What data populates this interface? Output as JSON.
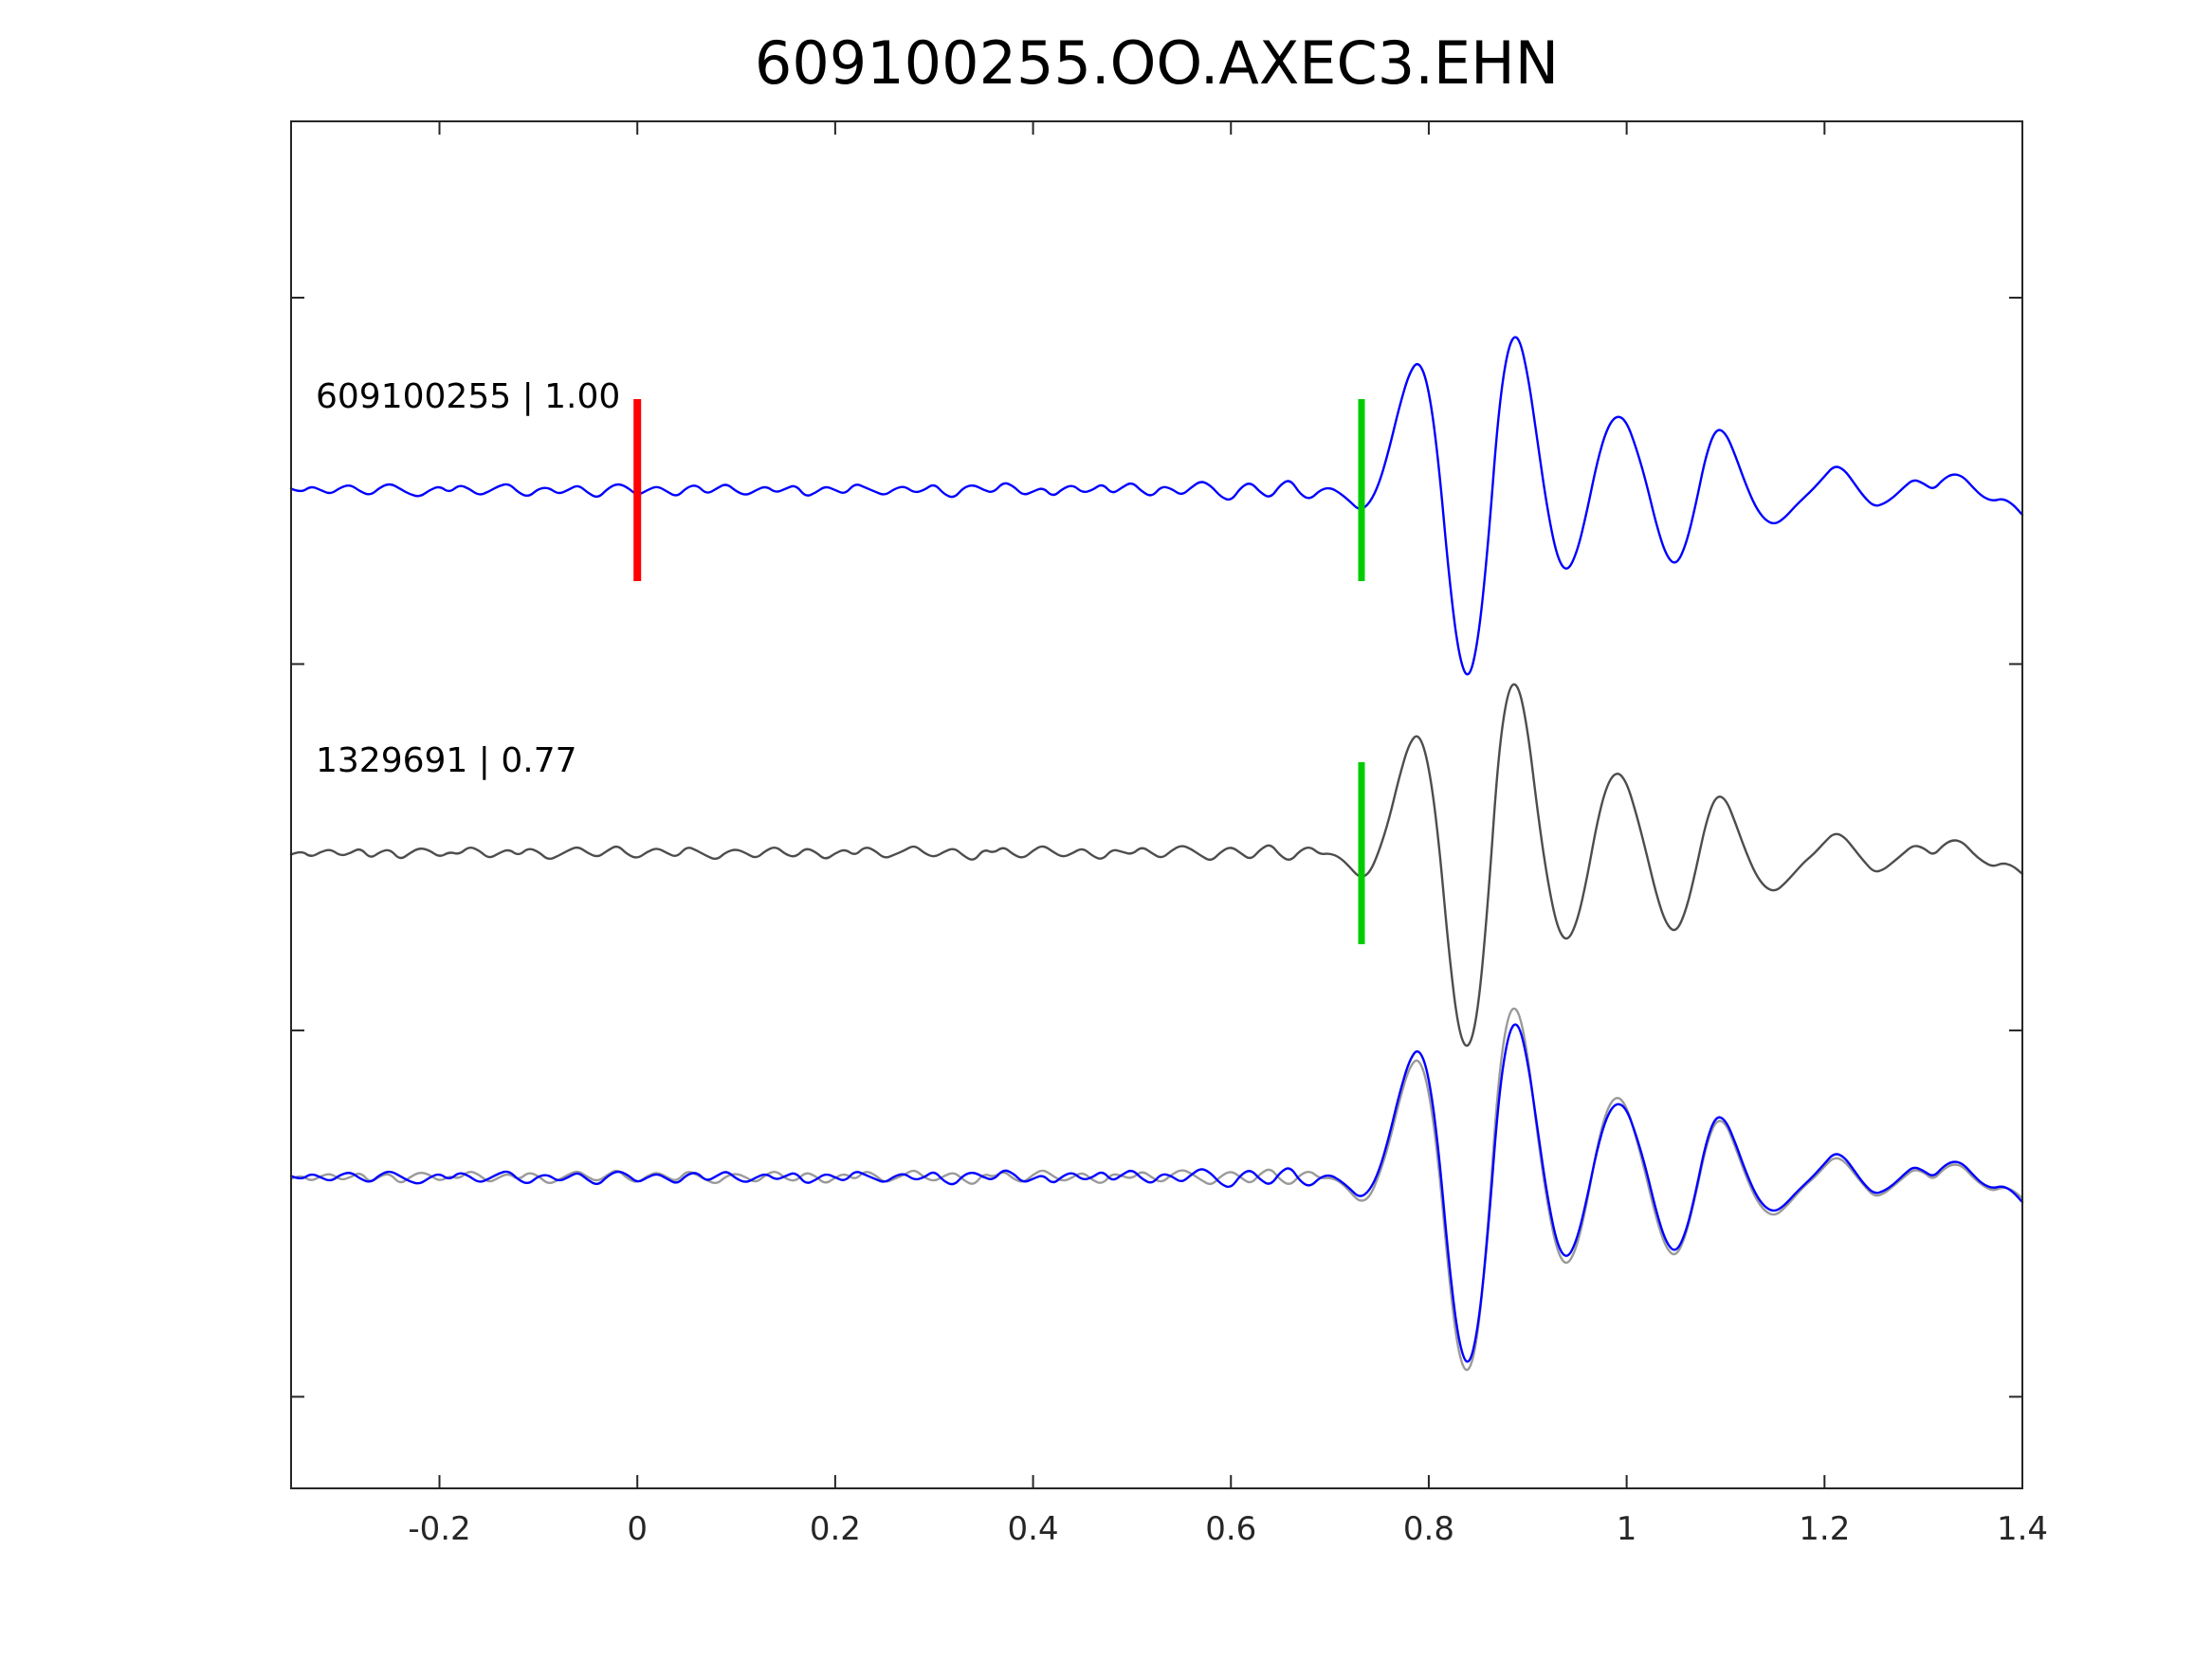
{
  "chart_data": {
    "type": "line",
    "title": "609100255.OO.AXEC3.EHN",
    "xlabel": "",
    "ylabel": "",
    "grid": false,
    "legend": "none",
    "xlim": [
      -0.35,
      1.4
    ],
    "x_ticks": [
      {
        "v": -0.2,
        "label": "-0.2"
      },
      {
        "v": 0,
        "label": "0"
      },
      {
        "v": 0.2,
        "label": "0.2"
      },
      {
        "v": 0.4,
        "label": "0.4"
      },
      {
        "v": 0.6,
        "label": "0.6"
      },
      {
        "v": 0.8,
        "label": "0.8"
      },
      {
        "v": 1,
        "label": "1"
      },
      {
        "v": 1.2,
        "label": "1.2"
      },
      {
        "v": 1.4,
        "label": "1.4"
      }
    ],
    "x0": -0.35,
    "dx": 0.01,
    "colors": {
      "template_blue": "#0000ff",
      "detection_gray": "#4d4d4d",
      "overlay_gray": "#9a9a9a",
      "pick_green": "#00cc00",
      "origin_red": "#ff0000",
      "axis": "#262626"
    },
    "rows": [
      {
        "label": "609100255 | 1.00",
        "series": [
          {
            "ref": "template",
            "color": "#0000ff"
          }
        ],
        "markers": [
          {
            "x": 0,
            "color": "#ff0000",
            "name": "origin-marker"
          },
          {
            "x": 0.732,
            "color": "#00cc00",
            "name": "pick-marker"
          }
        ]
      },
      {
        "label": "1329691 | 0.77",
        "series": [
          {
            "ref": "detection",
            "color": "#4d4d4d"
          }
        ],
        "markers": [
          {
            "x": 0.732,
            "color": "#00cc00",
            "name": "pick-marker"
          }
        ]
      },
      {
        "label": "",
        "series": [
          {
            "ref": "detection",
            "color": "#9a9a9a"
          },
          {
            "ref": "template",
            "color": "#0000ff"
          }
        ],
        "markers": []
      }
    ],
    "series": {
      "template": {
        "name": "609100255",
        "color": "#0000ff",
        "y": [
          0.01,
          -0.02,
          0.03,
          0.0,
          -0.03,
          0.02,
          0.04,
          -0.01,
          -0.04,
          0.02,
          0.05,
          0.01,
          -0.03,
          -0.05,
          0.0,
          0.03,
          -0.02,
          0.04,
          0.01,
          -0.04,
          -0.01,
          0.03,
          0.05,
          -0.02,
          -0.05,
          0.01,
          0.02,
          -0.03,
          0.0,
          0.04,
          -0.02,
          -0.06,
          0.01,
          0.05,
          0.02,
          -0.04,
          0.0,
          0.03,
          -0.01,
          -0.05,
          0.02,
          0.04,
          -0.03,
          0.01,
          0.05,
          -0.01,
          -0.04,
          0.0,
          0.03,
          -0.02,
          0.01,
          0.04,
          -0.05,
          -0.02,
          0.03,
          0.0,
          -0.03,
          0.05,
          0.02,
          -0.01,
          -0.04,
          0.01,
          0.03,
          -0.02,
          0.0,
          0.05,
          -0.03,
          -0.06,
          0.02,
          0.04,
          0.0,
          -0.02,
          0.06,
          0.03,
          -0.04,
          -0.01,
          0.02,
          -0.05,
          0.01,
          0.04,
          -0.02,
          0.0,
          0.05,
          -0.03,
          0.02,
          0.06,
          -0.01,
          -0.05,
          0.03,
          0.01,
          -0.04,
          0.02,
          0.07,
          0.03,
          -0.05,
          -0.08,
          0.02,
          0.06,
          -0.02,
          -0.06,
          0.04,
          0.08,
          -0.03,
          -0.07,
          0.0,
          0.02,
          -0.02,
          -0.08,
          -0.15,
          -0.1,
          0.05,
          0.3,
          0.6,
          0.85,
          0.95,
          0.75,
          0.2,
          -0.6,
          -1.2,
          -1.4,
          -1.1,
          -0.4,
          0.55,
          1.05,
          1.15,
          0.85,
          0.35,
          -0.15,
          -0.5,
          -0.6,
          -0.45,
          -0.15,
          0.2,
          0.45,
          0.55,
          0.5,
          0.3,
          0.05,
          -0.25,
          -0.48,
          -0.55,
          -0.4,
          -0.1,
          0.25,
          0.45,
          0.42,
          0.25,
          0.05,
          -0.12,
          -0.22,
          -0.25,
          -0.2,
          -0.12,
          -0.05,
          0.02,
          0.1,
          0.18,
          0.15,
          0.05,
          -0.05,
          -0.12,
          -0.1,
          -0.05,
          0.02,
          0.08,
          0.05,
          0.0,
          0.08,
          0.12,
          0.1,
          0.02,
          -0.05,
          -0.08,
          -0.06,
          -0.1,
          -0.18
        ]
      },
      "detection": {
        "name": "1329691",
        "color": "#4d4d4d",
        "y": [
          -0.01,
          0.02,
          -0.03,
          0.01,
          0.03,
          -0.02,
          0.0,
          0.04,
          -0.04,
          0.01,
          0.03,
          -0.05,
          0.0,
          0.04,
          0.02,
          -0.03,
          0.01,
          -0.01,
          0.05,
          0.02,
          -0.04,
          0.0,
          0.03,
          -0.02,
          0.04,
          0.01,
          -0.05,
          -0.02,
          0.02,
          0.05,
          0.0,
          -0.03,
          0.02,
          0.06,
          -0.01,
          -0.04,
          0.01,
          0.04,
          0.0,
          -0.03,
          0.05,
          0.02,
          -0.02,
          -0.05,
          0.01,
          0.03,
          0.0,
          -0.04,
          0.02,
          0.05,
          -0.01,
          -0.03,
          0.04,
          0.01,
          -0.05,
          0.0,
          0.03,
          -0.02,
          0.05,
          0.02,
          -0.04,
          -0.01,
          0.02,
          0.06,
          0.0,
          -0.03,
          0.01,
          0.04,
          -0.02,
          -0.06,
          0.03,
          0.0,
          0.05,
          -0.01,
          -0.04,
          0.02,
          0.06,
          0.01,
          -0.03,
          0.0,
          0.04,
          -0.02,
          -0.05,
          0.03,
          0.01,
          -0.01,
          0.05,
          0.0,
          -0.04,
          0.02,
          0.06,
          0.03,
          -0.02,
          -0.06,
          0.01,
          0.05,
          0.0,
          -0.05,
          0.03,
          0.07,
          -0.02,
          -0.06,
          0.02,
          0.05,
          -0.01,
          0.0,
          -0.03,
          -0.1,
          -0.18,
          -0.15,
          0.02,
          0.25,
          0.55,
          0.8,
          0.88,
          0.65,
          0.1,
          -0.7,
          -1.3,
          -1.45,
          -1.15,
          -0.35,
          0.7,
          1.2,
          1.25,
          0.9,
          0.3,
          -0.2,
          -0.55,
          -0.65,
          -0.5,
          -0.18,
          0.22,
          0.5,
          0.6,
          0.52,
          0.28,
          0.0,
          -0.3,
          -0.52,
          -0.58,
          -0.42,
          -0.12,
          0.22,
          0.42,
          0.4,
          0.22,
          0.02,
          -0.15,
          -0.25,
          -0.28,
          -0.22,
          -0.14,
          -0.06,
          0.0,
          0.08,
          0.15,
          0.12,
          0.03,
          -0.06,
          -0.14,
          -0.12,
          -0.06,
          0.0,
          0.06,
          0.04,
          -0.02,
          0.06,
          0.1,
          0.08,
          0.0,
          -0.06,
          -0.1,
          -0.07,
          -0.09,
          -0.15
        ]
      }
    }
  }
}
